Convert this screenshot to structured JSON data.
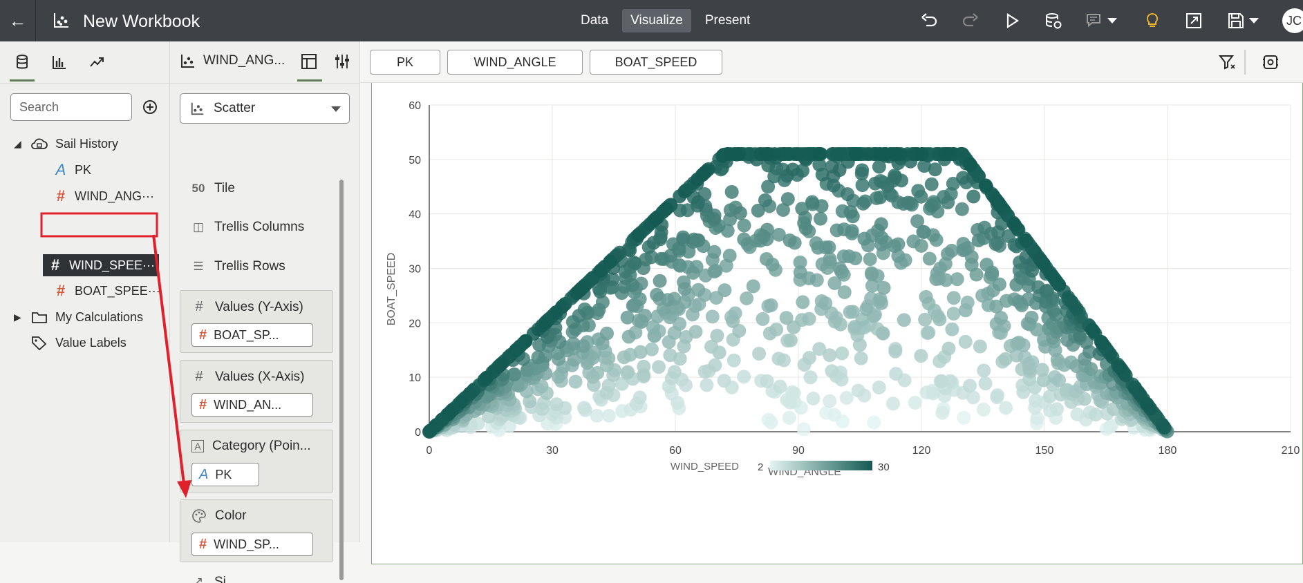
{
  "header": {
    "title": "New Workbook",
    "modes": [
      "Data",
      "Visualize",
      "Present"
    ],
    "active_mode": "Visualize",
    "user_initials": "JC"
  },
  "data_panel": {
    "search_placeholder": "Search",
    "dataset": "Sail History",
    "fields": [
      {
        "name": "PK",
        "type": "attribute"
      },
      {
        "name": "WIND_ANG···",
        "type": "measure"
      },
      {
        "name": "WIND_SPEE···",
        "type": "measure",
        "selected": true
      },
      {
        "name": "BOAT_SPEE···",
        "type": "measure"
      }
    ],
    "folders": [
      "My Calculations"
    ],
    "value_labels": "Value Labels"
  },
  "grammar": {
    "viz_name": "WIND_ANG...",
    "viz_type": "Scatter",
    "items": [
      "Tile",
      "Trellis Columns",
      "Trellis Rows"
    ],
    "tile_glyph": "50",
    "drops": [
      {
        "label": "Values (Y-Axis)",
        "pill": "BOAT_SP...",
        "pill_type": "measure"
      },
      {
        "label": "Values (X-Axis)",
        "pill": "WIND_AN...",
        "pill_type": "measure"
      },
      {
        "label": "Category (Poin...",
        "pill": "PK",
        "pill_type": "attribute"
      },
      {
        "label": "Color",
        "pill": "WIND_SP...",
        "pill_type": "measure"
      }
    ],
    "partial_label": "Si"
  },
  "canvas": {
    "chips": [
      "PK",
      "WIND_ANGLE",
      "BOAT_SPEED"
    ]
  },
  "chart_data": {
    "type": "scatter",
    "title": "",
    "xlabel": "WIND_ANGLE",
    "ylabel": "BOAT_SPEED",
    "xlim": [
      0,
      210
    ],
    "ylim": [
      0,
      60
    ],
    "xticks": [
      0,
      30,
      60,
      90,
      120,
      150,
      180,
      210
    ],
    "yticks": [
      0,
      10,
      20,
      30,
      40,
      50,
      60
    ],
    "grid": true,
    "color_by": "WIND_SPEED",
    "color_range": [
      2,
      30
    ],
    "colors": {
      "low": "#e3f4f2",
      "high": "#135a52"
    },
    "legend_position": "bottom",
    "point_rule": "boat_speed rises with wind_angle up to ~51 at 70-130 deg then falls to 0 at 180; boat_speed scales with wind_speed (2..30)",
    "point_count": 1400
  },
  "colors": {
    "header_bg": "#3e4247",
    "accent_green": "#5a7c52",
    "measure_red": "#d25a3c",
    "attribute_blue": "#3f88c5",
    "annotation_red": "#e0202a",
    "bulb_yellow": "#f0b428"
  },
  "icons": {
    "back": "back-arrow-icon",
    "undo": "undo-icon",
    "redo": "redo-icon",
    "play": "play-icon",
    "refresh_data": "refresh-data-icon",
    "comment": "comment-icon",
    "insights": "lightbulb-icon",
    "share": "share-icon",
    "save": "save-icon"
  }
}
